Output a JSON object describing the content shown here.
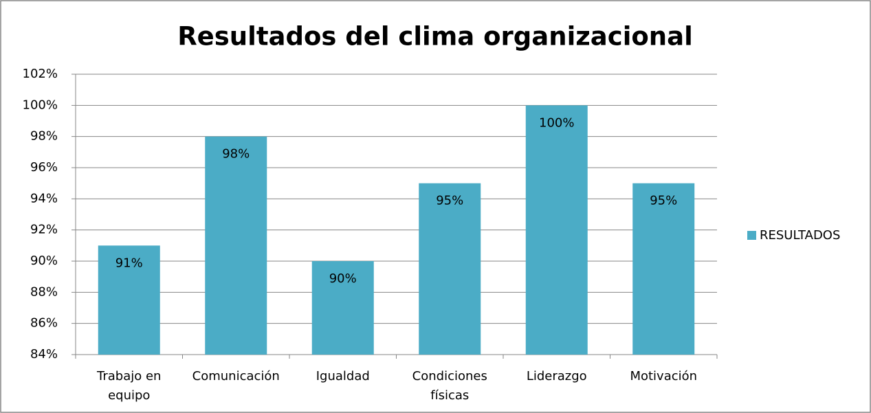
{
  "chart_data": {
    "type": "bar",
    "title": "Resultados del clima organizacional",
    "categories": [
      "Trabajo en equipo",
      "Comunicación",
      "Igualdad",
      "Condiciones físicas",
      "Liderazgo",
      "Motivación"
    ],
    "series": [
      {
        "name": "RESULTADOS",
        "color": "#4bacc6",
        "values": [
          91,
          98,
          90,
          95,
          100,
          95
        ],
        "value_labels": [
          "91%",
          "98%",
          "90%",
          "95%",
          "100%",
          "95%"
        ]
      }
    ],
    "ylim": [
      84,
      102
    ],
    "yticks": [
      {
        "value": 84,
        "label": "84%"
      },
      {
        "value": 86,
        "label": "86%"
      },
      {
        "value": 88,
        "label": "88%"
      },
      {
        "value": 90,
        "label": "90%"
      },
      {
        "value": 92,
        "label": "92%"
      },
      {
        "value": 94,
        "label": "94%"
      },
      {
        "value": 96,
        "label": "96%"
      },
      {
        "value": 98,
        "label": "98%"
      },
      {
        "value": 100,
        "label": "100%"
      },
      {
        "value": 102,
        "label": "102%"
      }
    ],
    "grid": true,
    "legend": "right"
  }
}
